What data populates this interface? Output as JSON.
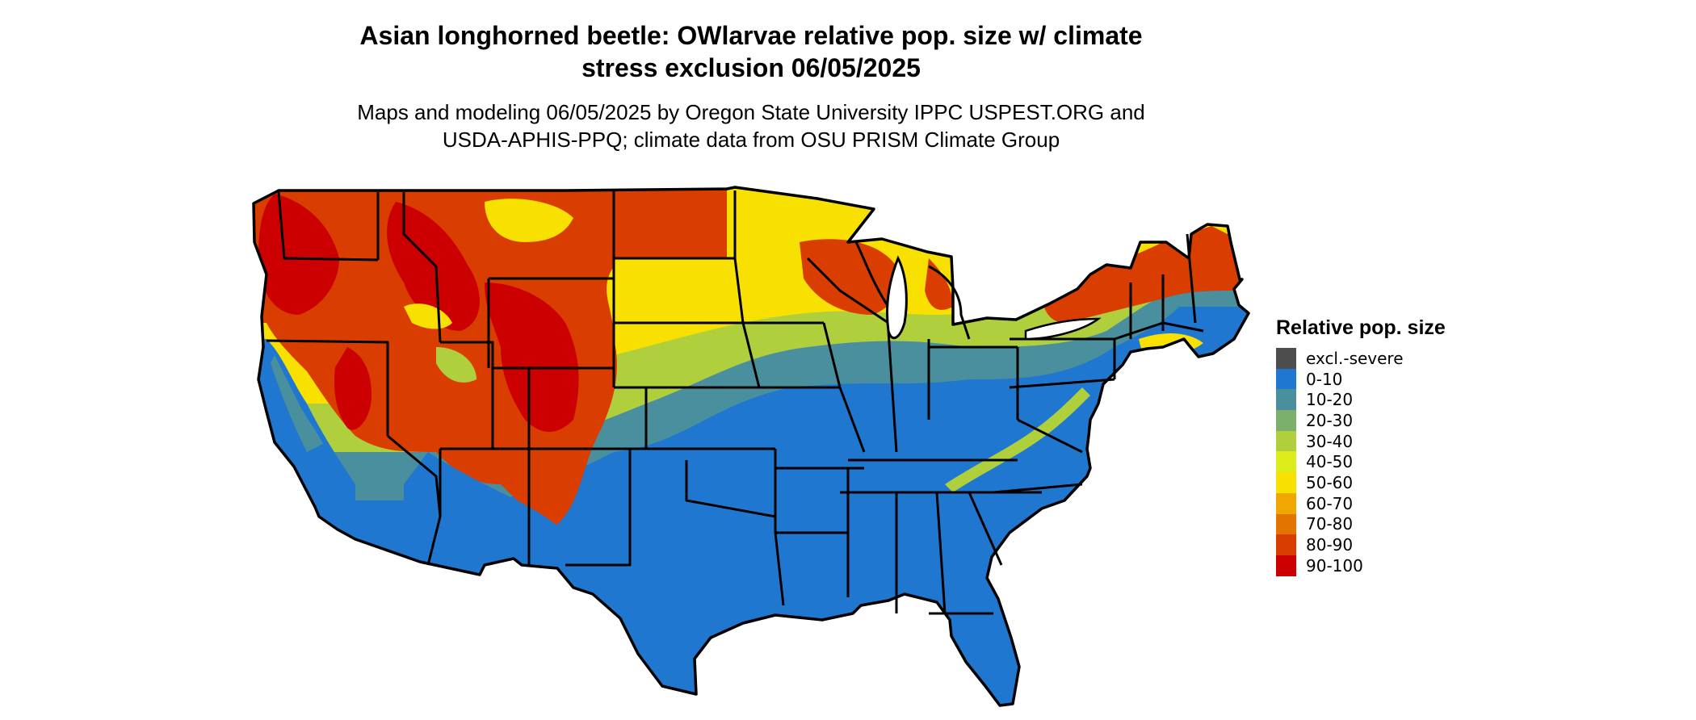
{
  "title_line1": "Asian longhorned beetle: OWlarvae relative pop. size w/ climate",
  "title_line2": "stress exclusion 06/05/2025",
  "subtitle_line1": "Maps and modeling 06/05/2025 by Oregon State University IPPC USPEST.ORG and",
  "subtitle_line2": "USDA-APHIS-PPQ; climate data from OSU PRISM Climate Group",
  "legend": {
    "title": "Relative pop. size",
    "items": [
      {
        "label": "excl.-severe",
        "color": "#4d4d4d"
      },
      {
        "label": "0-10",
        "color": "#1f77d0"
      },
      {
        "label": "10-20",
        "color": "#4a8f9e"
      },
      {
        "label": "20-30",
        "color": "#7daf6c"
      },
      {
        "label": "30-40",
        "color": "#b0cf3d"
      },
      {
        "label": "40-50",
        "color": "#dced1b"
      },
      {
        "label": "50-60",
        "color": "#f8e000"
      },
      {
        "label": "60-70",
        "color": "#f0a800"
      },
      {
        "label": "70-80",
        "color": "#e47400"
      },
      {
        "label": "80-90",
        "color": "#d93d00"
      },
      {
        "label": "90-100",
        "color": "#cc0000"
      }
    ]
  },
  "map": {
    "region": "contiguous United States",
    "fill_colors": {
      "red": "#cc0000",
      "orange_red": "#d93d00",
      "yellow": "#f8e000",
      "yellow_green": "#b0cf3d",
      "teal": "#4a8f9e",
      "blue": "#1f77d0"
    }
  }
}
